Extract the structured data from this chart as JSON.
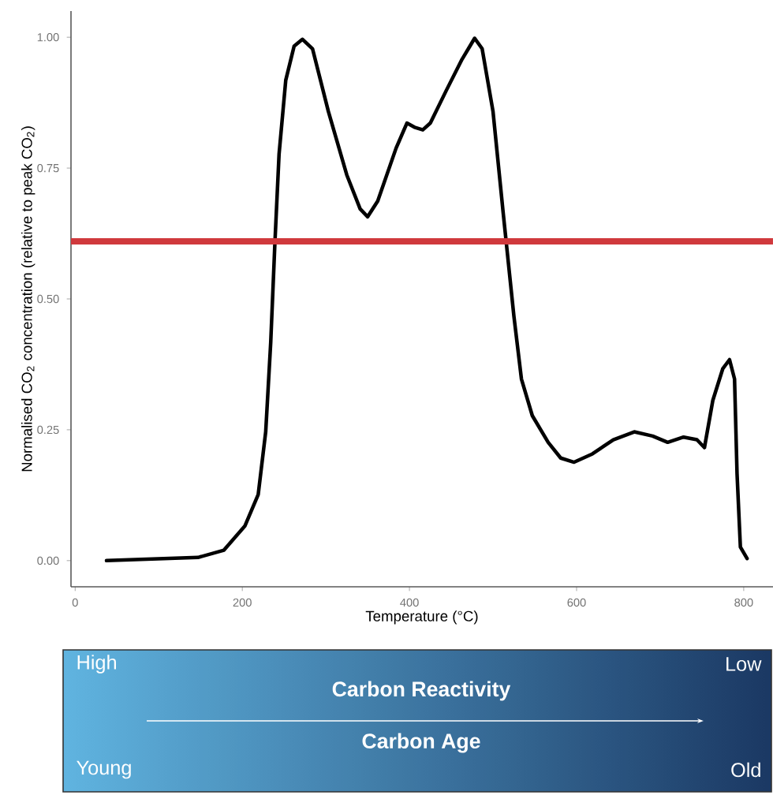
{
  "chart_data": {
    "type": "line",
    "xlabel": "Temperature (°C)",
    "ylabel": "Normalised CO$_{2}$ concentration (relative to peak CO$_{2}$)",
    "xlim": [
      -5,
      835
    ],
    "ylim": [
      -0.05,
      1.05
    ],
    "xticks": [
      0,
      200,
      400,
      600,
      800
    ],
    "yticks": [
      {
        "value": 0,
        "label": "0.00"
      },
      {
        "value": 0.25,
        "label": "0.25"
      },
      {
        "value": 0.5,
        "label": "0.50"
      },
      {
        "value": 0.75,
        "label": "0.75"
      },
      {
        "value": 1,
        "label": "1.00"
      }
    ],
    "marker": "none",
    "line_style": "solid",
    "grid": false,
    "series": [
      {
        "color": "#000000",
        "x": [
          37.5,
          147,
          178,
          203,
          219,
          228,
          234,
          239,
          244,
          252,
          262,
          272,
          284,
          303,
          325,
          341,
          350,
          362,
          384,
          397,
          406,
          416,
          425,
          444,
          463,
          478,
          487,
          500,
          512,
          525,
          534,
          547,
          566,
          581,
          597,
          619,
          644,
          669,
          691,
          709,
          728,
          744,
          753,
          763,
          775,
          783,
          789,
          792,
          796,
          804
        ],
        "values": [
          0,
          0.006,
          0.02,
          0.066,
          0.126,
          0.246,
          0.417,
          0.607,
          0.777,
          0.918,
          0.983,
          0.996,
          0.978,
          0.858,
          0.737,
          0.672,
          0.657,
          0.687,
          0.788,
          0.836,
          0.828,
          0.823,
          0.836,
          0.898,
          0.958,
          0.998,
          0.978,
          0.858,
          0.667,
          0.467,
          0.347,
          0.277,
          0.226,
          0.196,
          0.188,
          0.204,
          0.231,
          0.246,
          0.238,
          0.226,
          0.236,
          0.231,
          0.216,
          0.306,
          0.367,
          0.384,
          0.347,
          0.166,
          0.026,
          0.004
        ]
      }
    ],
    "ref_lines": [
      {
        "axis": "y",
        "value": 0.61,
        "color": "#d0393d"
      }
    ],
    "annotations": [
      "High",
      "Low",
      "Carbon Reactivity",
      "Carbon Age",
      "Young",
      "Old"
    ]
  }
}
